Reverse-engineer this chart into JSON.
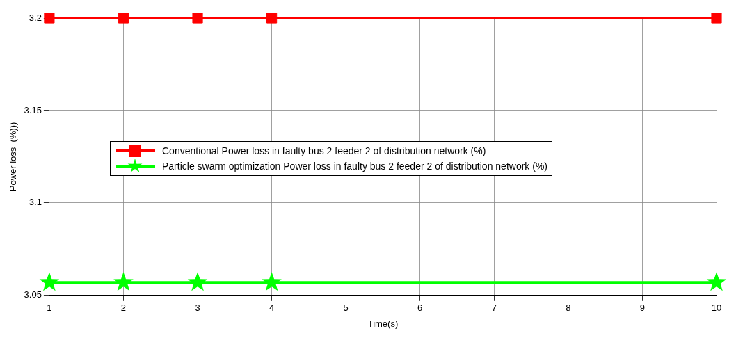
{
  "chart_data": {
    "type": "line",
    "xlabel": "Time(s)",
    "ylabel": "Power loss  (%)))",
    "x": [
      1,
      2,
      3,
      4,
      10
    ],
    "series": [
      {
        "name": "Conventional Power loss in faulty bus 2 feeder 2 of distribution network (%)",
        "color": "#ff0000",
        "marker": "square",
        "values": [
          3.2,
          3.2,
          3.2,
          3.2,
          3.2
        ]
      },
      {
        "name": "Particle swarm optimization Power loss in faulty bus 2 feeder 2 of distribution network (%)",
        "color": "#00ff00",
        "marker": "star",
        "values": [
          3.057,
          3.057,
          3.057,
          3.057,
          3.057
        ]
      }
    ],
    "xlim": [
      1,
      10
    ],
    "xticks": [
      1,
      2,
      3,
      4,
      5,
      6,
      7,
      8,
      9,
      10
    ],
    "ylim": [
      3.05,
      3.2
    ],
    "yticks": [
      3.05,
      3.1,
      3.15,
      3.2
    ],
    "grid": true,
    "legend": "left",
    "line_style": "solid"
  }
}
